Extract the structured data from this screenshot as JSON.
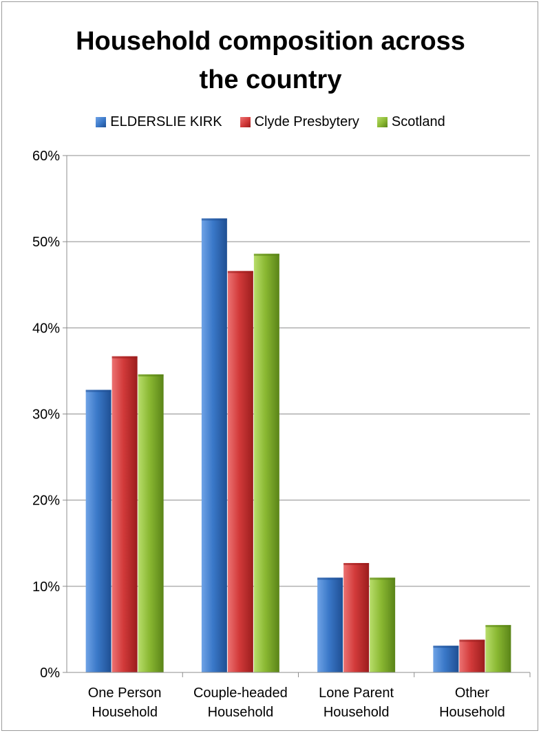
{
  "chart_data": {
    "type": "bar",
    "title": "Household composition across the country",
    "categories": [
      [
        "One Person",
        "Household"
      ],
      [
        "Couple-headed",
        "Household"
      ],
      [
        "Lone Parent",
        "Household"
      ],
      [
        "Other",
        "Household"
      ]
    ],
    "series": [
      {
        "name": "ELDERSLIE KIRK",
        "values": [
          32.8,
          52.7,
          11.0,
          3.1
        ],
        "color": "#3a78c8",
        "dark": "#1f4f93",
        "light": "#6fa3e6"
      },
      {
        "name": "Clyde Presbytery",
        "values": [
          36.7,
          46.6,
          12.7,
          3.8
        ],
        "color": "#d23a3a",
        "dark": "#9b1d1d",
        "light": "#ec7272"
      },
      {
        "name": "Scotland",
        "values": [
          34.6,
          48.6,
          11.0,
          5.5
        ],
        "color": "#8ab832",
        "dark": "#5a8418",
        "light": "#b8dd6b"
      }
    ],
    "ylim": [
      0,
      60
    ],
    "yticks": [
      0,
      10,
      20,
      30,
      40,
      50,
      60
    ],
    "ytick_labels": [
      "0%",
      "10%",
      "20%",
      "30%",
      "40%",
      "50%",
      "60%"
    ],
    "grid": true,
    "legend": "top"
  }
}
